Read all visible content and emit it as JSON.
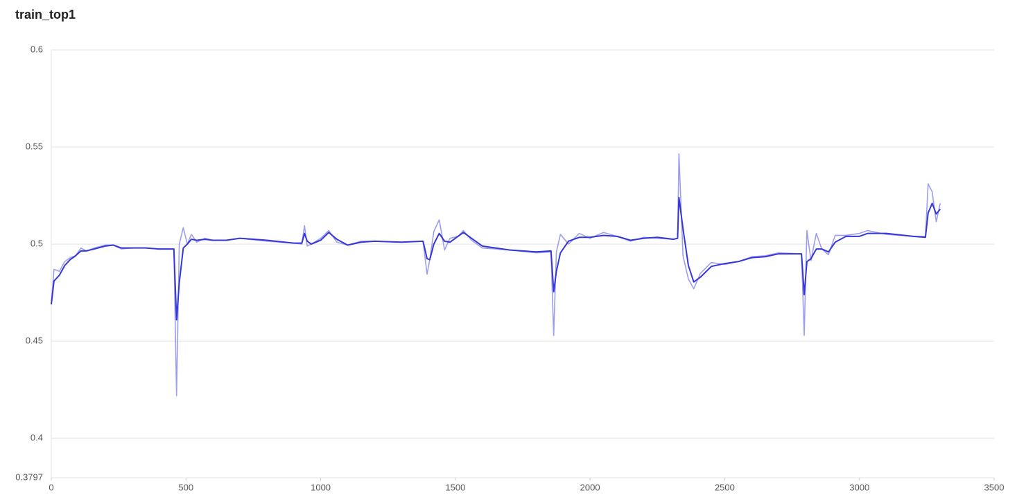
{
  "chart_data": {
    "type": "line",
    "title": "train_top1",
    "x": [
      0,
      10,
      30,
      50,
      70,
      90,
      110,
      130,
      160,
      200,
      230,
      260,
      300,
      350,
      400,
      455,
      465,
      475,
      490,
      505,
      520,
      540,
      570,
      600,
      650,
      700,
      800,
      900,
      930,
      940,
      950,
      965,
      1000,
      1030,
      1060,
      1100,
      1150,
      1200,
      1300,
      1380,
      1395,
      1405,
      1420,
      1440,
      1460,
      1480,
      1510,
      1530,
      1560,
      1600,
      1700,
      1800,
      1855,
      1865,
      1875,
      1890,
      1920,
      1960,
      2000,
      2050,
      2100,
      2150,
      2200,
      2250,
      2310,
      2325,
      2330,
      2345,
      2365,
      2385,
      2410,
      2450,
      2500,
      2550,
      2600,
      2650,
      2700,
      2785,
      2795,
      2805,
      2820,
      2840,
      2860,
      2885,
      2910,
      2950,
      3000,
      3030,
      3100,
      3200,
      3245,
      3255,
      3270,
      3285,
      3300
    ],
    "series": [
      {
        "color": "#9d9df0",
        "values": [
          0.469,
          0.487,
          0.486,
          0.491,
          0.493,
          0.494,
          0.498,
          0.4965,
          0.498,
          0.4995,
          0.4995,
          0.4975,
          0.498,
          0.498,
          0.4975,
          0.4975,
          0.422,
          0.5,
          0.5085,
          0.5,
          0.505,
          0.501,
          0.503,
          0.502,
          0.502,
          0.503,
          0.5015,
          0.5005,
          0.5,
          0.5095,
          0.499,
          0.5,
          0.503,
          0.507,
          0.501,
          0.4995,
          0.5015,
          0.5015,
          0.501,
          0.5015,
          0.4845,
          0.492,
          0.5065,
          0.5125,
          0.497,
          0.503,
          0.504,
          0.507,
          0.502,
          0.498,
          0.497,
          0.4955,
          0.496,
          0.453,
          0.496,
          0.505,
          0.5,
          0.5055,
          0.503,
          0.506,
          0.504,
          0.5015,
          0.5035,
          0.503,
          0.5025,
          0.503,
          0.5465,
          0.494,
          0.482,
          0.477,
          0.485,
          0.4905,
          0.4895,
          0.491,
          0.4935,
          0.494,
          0.4955,
          0.495,
          0.453,
          0.507,
          0.4915,
          0.5055,
          0.4975,
          0.4945,
          0.5045,
          0.5045,
          0.5055,
          0.507,
          0.505,
          0.504,
          0.504,
          0.531,
          0.527,
          0.5115,
          0.521
        ]
      },
      {
        "color": "#3636d6",
        "values": [
          0.469,
          0.481,
          0.484,
          0.489,
          0.492,
          0.494,
          0.4965,
          0.4965,
          0.4975,
          0.499,
          0.4995,
          0.498,
          0.498,
          0.498,
          0.4975,
          0.4975,
          0.461,
          0.48,
          0.498,
          0.5,
          0.5025,
          0.502,
          0.5025,
          0.502,
          0.502,
          0.503,
          0.502,
          0.5005,
          0.5005,
          0.5055,
          0.5015,
          0.5,
          0.502,
          0.506,
          0.5025,
          0.4995,
          0.501,
          0.5015,
          0.501,
          0.5015,
          0.4925,
          0.492,
          0.5,
          0.5055,
          0.5015,
          0.501,
          0.504,
          0.506,
          0.503,
          0.499,
          0.497,
          0.496,
          0.4965,
          0.4755,
          0.486,
          0.4955,
          0.5015,
          0.5035,
          0.5035,
          0.5045,
          0.504,
          0.502,
          0.503,
          0.5035,
          0.5025,
          0.503,
          0.524,
          0.508,
          0.489,
          0.4805,
          0.483,
          0.4885,
          0.49,
          0.491,
          0.493,
          0.4935,
          0.495,
          0.495,
          0.474,
          0.491,
          0.4925,
          0.4975,
          0.4975,
          0.496,
          0.501,
          0.504,
          0.504,
          0.5055,
          0.5055,
          0.504,
          0.5035,
          0.516,
          0.521,
          0.5155,
          0.518
        ]
      }
    ],
    "xlim": [
      0,
      3500
    ],
    "xticks": [
      0,
      500,
      1000,
      1500,
      2000,
      2500,
      3000,
      3500
    ],
    "ylim": [
      0.3797,
      0.6
    ],
    "yticks": [
      0.3797,
      0.4,
      0.45,
      0.5,
      0.55,
      0.6
    ],
    "grid": true
  }
}
